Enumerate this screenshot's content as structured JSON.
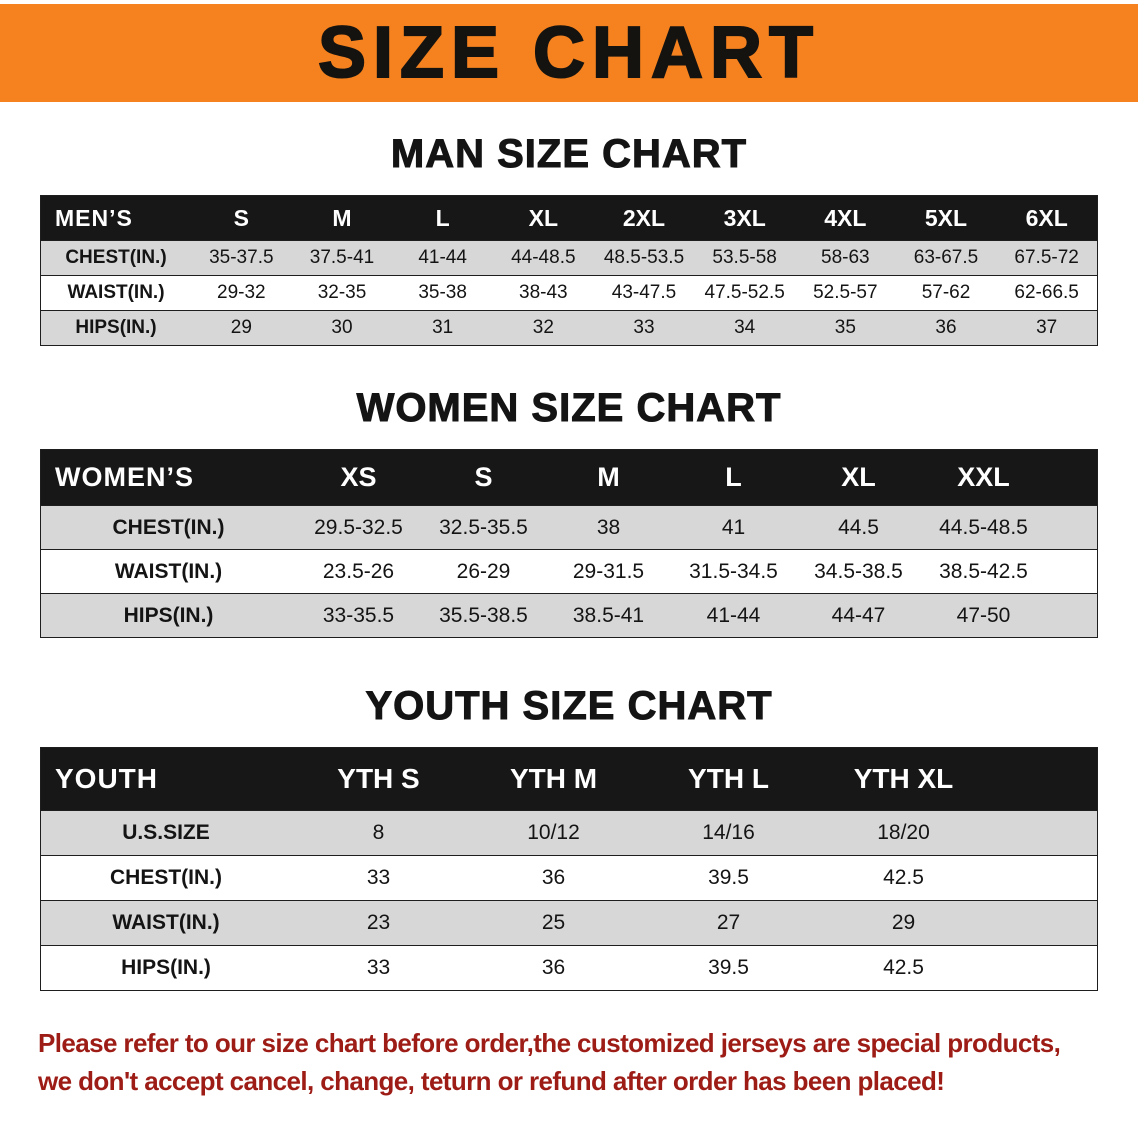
{
  "banner": {
    "title": "SIZE CHART"
  },
  "colors": {
    "banner_orange": "#F5821F",
    "header_black": "#171717",
    "row_gray": "#d7d7d7",
    "notice_red": "#9d1c16"
  },
  "sections": [
    {
      "heading": "MAN SIZE CHART",
      "table": {
        "corner": "MEN’S",
        "columns": [
          "S",
          "M",
          "L",
          "XL",
          "2XL",
          "3XL",
          "4XL",
          "5XL",
          "6XL"
        ],
        "rows": [
          {
            "label": "CHEST(IN.)",
            "values": [
              "35-37.5",
              "37.5-41",
              "41-44",
              "44-48.5",
              "48.5-53.5",
              "53.5-58",
              "58-63",
              "63-67.5",
              "67.5-72"
            ]
          },
          {
            "label": "WAIST(IN.)",
            "values": [
              "29-32",
              "32-35",
              "35-38",
              "38-43",
              "43-47.5",
              "47.5-52.5",
              "52.5-57",
              "57-62",
              "62-66.5"
            ]
          },
          {
            "label": "HIPS(IN.)",
            "values": [
              "29",
              "30",
              "31",
              "32",
              "33",
              "34",
              "35",
              "36",
              "37"
            ]
          }
        ]
      }
    },
    {
      "heading": "WOMEN SIZE CHART",
      "table": {
        "corner": "WOMEN’S",
        "columns": [
          "XS",
          "S",
          "M",
          "L",
          "XL",
          "XXL"
        ],
        "rows": [
          {
            "label": "CHEST(IN.)",
            "values": [
              "29.5-32.5",
              "32.5-35.5",
              "38",
              "41",
              "44.5",
              "44.5-48.5"
            ]
          },
          {
            "label": "WAIST(IN.)",
            "values": [
              "23.5-26",
              "26-29",
              "29-31.5",
              "31.5-34.5",
              "34.5-38.5",
              "38.5-42.5"
            ]
          },
          {
            "label": "HIPS(IN.)",
            "values": [
              "33-35.5",
              "35.5-38.5",
              "38.5-41",
              "41-44",
              "44-47",
              "47-50"
            ]
          }
        ]
      }
    },
    {
      "heading": "YOUTH SIZE CHART",
      "table": {
        "corner": "YOUTH",
        "columns": [
          "YTH S",
          "YTH M",
          "YTH L",
          "YTH XL"
        ],
        "rows": [
          {
            "label": "U.S.SIZE",
            "values": [
              "8",
              "10/12",
              "14/16",
              "18/20"
            ]
          },
          {
            "label": "CHEST(IN.)",
            "values": [
              "33",
              "36",
              "39.5",
              "42.5"
            ]
          },
          {
            "label": "WAIST(IN.)",
            "values": [
              "23",
              "25",
              "27",
              "29"
            ]
          },
          {
            "label": "HIPS(IN.)",
            "values": [
              "33",
              "36",
              "39.5",
              "42.5"
            ]
          }
        ]
      }
    }
  ],
  "footer": {
    "line1": "Please refer to our size chart before order,the customized jerseys are special products,",
    "line2": "we don't accept cancel, change, teturn or refund after order has been placed!"
  }
}
